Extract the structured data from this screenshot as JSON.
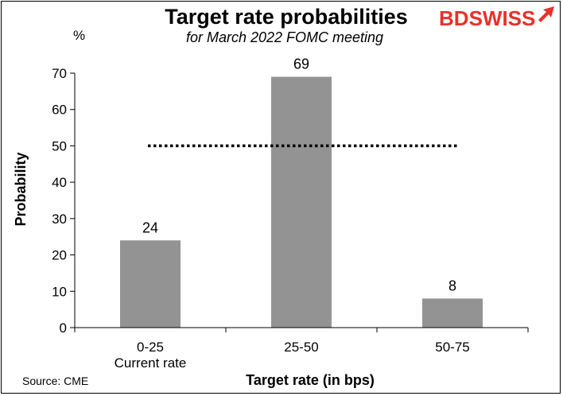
{
  "chart_data": {
    "type": "bar",
    "title": "Target rate probabilities",
    "subtitle": "for March  2022  FOMC  meeting",
    "unit_label": "%",
    "ylabel": "Probability",
    "xlabel": "Target rate (in bps)",
    "ylim": [
      0,
      70
    ],
    "yticks": [
      0,
      10,
      20,
      30,
      40,
      50,
      60,
      70
    ],
    "categories": [
      {
        "label": "0-25",
        "sublabel": "Current  rate"
      },
      {
        "label": "25-50",
        "sublabel": ""
      },
      {
        "label": "50-75",
        "sublabel": ""
      }
    ],
    "values": [
      24,
      69,
      8
    ],
    "data_labels": [
      "24",
      "69",
      "8"
    ],
    "reference_line": {
      "value": 50,
      "style": "dotted"
    },
    "bar_color": "#939393",
    "grid": false,
    "legend": "none"
  },
  "source": "Source: CME",
  "logo": {
    "text_a": "BD",
    "text_b": "SWISS",
    "color_a": "#e8312a",
    "color_b": "#e8312a",
    "arrow_color": "#e8312a"
  }
}
